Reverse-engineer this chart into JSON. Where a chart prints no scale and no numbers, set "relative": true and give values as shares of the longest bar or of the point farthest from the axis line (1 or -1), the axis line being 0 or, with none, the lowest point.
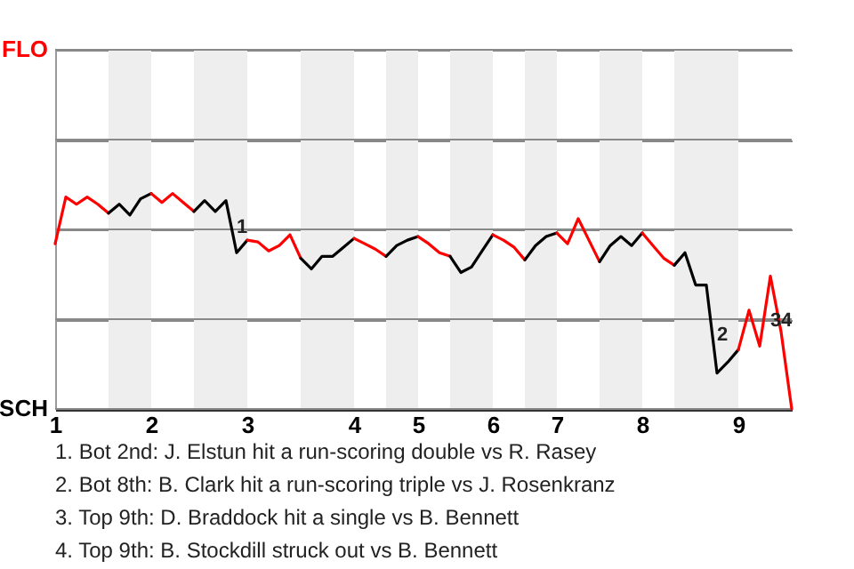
{
  "chart_data": {
    "type": "line",
    "relative": true,
    "grid": "y",
    "marker": "none",
    "line_style": "solid",
    "categories": [
      "1",
      null,
      null,
      null,
      null,
      null,
      null,
      null,
      null,
      "2",
      null,
      null,
      null,
      null,
      null,
      null,
      null,
      null,
      "3",
      null,
      null,
      null,
      null,
      null,
      null,
      null,
      null,
      null,
      "4",
      null,
      null,
      null,
      null,
      null,
      "5",
      null,
      null,
      null,
      null,
      null,
      null,
      "6",
      null,
      null,
      null,
      null,
      null,
      "7",
      null,
      null,
      null,
      null,
      null,
      null,
      null,
      "8",
      null,
      null,
      null,
      null,
      null,
      null,
      null,
      null,
      "9",
      null,
      null,
      null,
      null,
      null
    ],
    "series": [
      {
        "color": "#ff0000",
        "values": [
          -0.08,
          0.18,
          0.14,
          0.18,
          0.14,
          0.09,
          null,
          null,
          null,
          null,
          null,
          null,
          null,
          null,
          null,
          null,
          null,
          null,
          null,
          null,
          null,
          null,
          null,
          null,
          null,
          null,
          null,
          null,
          null,
          null,
          null,
          null,
          null,
          null,
          null,
          null,
          null,
          null,
          null,
          null,
          null,
          null,
          null,
          null,
          null,
          null,
          null,
          null,
          null,
          null,
          null,
          null,
          null,
          null,
          null,
          null,
          null,
          null,
          null,
          null,
          null,
          null,
          null,
          null,
          null,
          null,
          null,
          null,
          null,
          null
        ]
      },
      {
        "color": "#000000",
        "values": [
          null,
          null,
          null,
          null,
          null,
          0.09,
          0.14,
          0.08,
          0.17,
          0.2,
          null,
          null,
          null,
          null,
          null,
          null,
          null,
          null,
          null,
          null,
          null,
          null,
          null,
          null,
          null,
          null,
          null,
          null,
          null,
          null,
          null,
          null,
          null,
          null,
          null,
          null,
          null,
          null,
          null,
          null,
          null,
          null,
          null,
          null,
          null,
          null,
          null,
          null,
          null,
          null,
          null,
          null,
          null,
          null,
          null,
          null,
          null,
          null,
          null,
          null,
          null,
          null,
          null,
          null,
          null,
          null,
          null,
          null,
          null,
          null
        ]
      },
      {
        "color": "#ff0000",
        "values": [
          null,
          null,
          null,
          null,
          null,
          null,
          null,
          null,
          null,
          0.2,
          0.15,
          0.2,
          0.15,
          0.1,
          null,
          null,
          null,
          null,
          null,
          null,
          null,
          null,
          null,
          null,
          null,
          null,
          null,
          null,
          null,
          null,
          null,
          null,
          null,
          null,
          null,
          null,
          null,
          null,
          null,
          null,
          null,
          null,
          null,
          null,
          null,
          null,
          null,
          null,
          null,
          null,
          null,
          null,
          null,
          null,
          null,
          null,
          null,
          null,
          null,
          null,
          null,
          null,
          null,
          null,
          null,
          null,
          null,
          null,
          null,
          null
        ]
      },
      {
        "color": "#000000",
        "values": [
          null,
          null,
          null,
          null,
          null,
          null,
          null,
          null,
          null,
          null,
          null,
          null,
          null,
          0.1,
          0.16,
          0.1,
          0.16,
          -0.13,
          -0.06,
          null,
          null,
          null,
          null,
          null,
          null,
          null,
          null,
          null,
          null,
          null,
          null,
          null,
          null,
          null,
          null,
          null,
          null,
          null,
          null,
          null,
          null,
          null,
          null,
          null,
          null,
          null,
          null,
          null,
          null,
          null,
          null,
          null,
          null,
          null,
          null,
          null,
          null,
          null,
          null,
          null,
          null,
          null,
          null,
          null,
          null,
          null,
          null,
          null,
          null,
          null
        ]
      },
      {
        "color": "#ff0000",
        "values": [
          null,
          null,
          null,
          null,
          null,
          null,
          null,
          null,
          null,
          null,
          null,
          null,
          null,
          null,
          null,
          null,
          null,
          null,
          -0.06,
          -0.07,
          -0.12,
          -0.09,
          -0.03,
          -0.16,
          null,
          null,
          null,
          null,
          null,
          null,
          null,
          null,
          null,
          null,
          null,
          null,
          null,
          null,
          null,
          null,
          null,
          null,
          null,
          null,
          null,
          null,
          null,
          null,
          null,
          null,
          null,
          null,
          null,
          null,
          null,
          null,
          null,
          null,
          null,
          null,
          null,
          null,
          null,
          null,
          null,
          null,
          null,
          null,
          null,
          null
        ]
      },
      {
        "color": "#000000",
        "values": [
          null,
          null,
          null,
          null,
          null,
          null,
          null,
          null,
          null,
          null,
          null,
          null,
          null,
          null,
          null,
          null,
          null,
          null,
          null,
          null,
          null,
          null,
          null,
          -0.16,
          -0.22,
          -0.15,
          -0.15,
          -0.1,
          -0.05,
          null,
          null,
          null,
          null,
          null,
          null,
          null,
          null,
          null,
          null,
          null,
          null,
          null,
          null,
          null,
          null,
          null,
          null,
          null,
          null,
          null,
          null,
          null,
          null,
          null,
          null,
          null,
          null,
          null,
          null,
          null,
          null,
          null,
          null,
          null,
          null,
          null,
          null,
          null,
          null,
          null
        ]
      },
      {
        "color": "#ff0000",
        "values": [
          null,
          null,
          null,
          null,
          null,
          null,
          null,
          null,
          null,
          null,
          null,
          null,
          null,
          null,
          null,
          null,
          null,
          null,
          null,
          null,
          null,
          null,
          null,
          null,
          null,
          null,
          null,
          null,
          -0.05,
          -0.08,
          -0.11,
          -0.15,
          null,
          null,
          null,
          null,
          null,
          null,
          null,
          null,
          null,
          null,
          null,
          null,
          null,
          null,
          null,
          null,
          null,
          null,
          null,
          null,
          null,
          null,
          null,
          null,
          null,
          null,
          null,
          null,
          null,
          null,
          null,
          null,
          null,
          null,
          null,
          null,
          null,
          null
        ]
      },
      {
        "color": "#000000",
        "values": [
          null,
          null,
          null,
          null,
          null,
          null,
          null,
          null,
          null,
          null,
          null,
          null,
          null,
          null,
          null,
          null,
          null,
          null,
          null,
          null,
          null,
          null,
          null,
          null,
          null,
          null,
          null,
          null,
          null,
          null,
          null,
          -0.15,
          -0.09,
          -0.06,
          -0.04,
          null,
          null,
          null,
          null,
          null,
          null,
          null,
          null,
          null,
          null,
          null,
          null,
          null,
          null,
          null,
          null,
          null,
          null,
          null,
          null,
          null,
          null,
          null,
          null,
          null,
          null,
          null,
          null,
          null,
          null,
          null,
          null,
          null,
          null,
          null
        ]
      },
      {
        "color": "#ff0000",
        "values": [
          null,
          null,
          null,
          null,
          null,
          null,
          null,
          null,
          null,
          null,
          null,
          null,
          null,
          null,
          null,
          null,
          null,
          null,
          null,
          null,
          null,
          null,
          null,
          null,
          null,
          null,
          null,
          null,
          null,
          null,
          null,
          null,
          null,
          null,
          -0.04,
          -0.08,
          -0.13,
          -0.15,
          null,
          null,
          null,
          null,
          null,
          null,
          null,
          null,
          null,
          null,
          null,
          null,
          null,
          null,
          null,
          null,
          null,
          null,
          null,
          null,
          null,
          null,
          null,
          null,
          null,
          null,
          null,
          null,
          null,
          null,
          null,
          null
        ]
      },
      {
        "color": "#000000",
        "values": [
          null,
          null,
          null,
          null,
          null,
          null,
          null,
          null,
          null,
          null,
          null,
          null,
          null,
          null,
          null,
          null,
          null,
          null,
          null,
          null,
          null,
          null,
          null,
          null,
          null,
          null,
          null,
          null,
          null,
          null,
          null,
          null,
          null,
          null,
          null,
          null,
          null,
          -0.15,
          -0.24,
          -0.21,
          -0.12,
          -0.03,
          null,
          null,
          null,
          null,
          null,
          null,
          null,
          null,
          null,
          null,
          null,
          null,
          null,
          null,
          null,
          null,
          null,
          null,
          null,
          null,
          null,
          null,
          null,
          null,
          null,
          null,
          null,
          null
        ]
      },
      {
        "color": "#ff0000",
        "values": [
          null,
          null,
          null,
          null,
          null,
          null,
          null,
          null,
          null,
          null,
          null,
          null,
          null,
          null,
          null,
          null,
          null,
          null,
          null,
          null,
          null,
          null,
          null,
          null,
          null,
          null,
          null,
          null,
          null,
          null,
          null,
          null,
          null,
          null,
          null,
          null,
          null,
          null,
          null,
          null,
          null,
          -0.03,
          -0.06,
          -0.1,
          -0.17,
          null,
          null,
          null,
          null,
          null,
          null,
          null,
          null,
          null,
          null,
          null,
          null,
          null,
          null,
          null,
          null,
          null,
          null,
          null,
          null,
          null,
          null,
          null,
          null,
          null
        ]
      },
      {
        "color": "#000000",
        "values": [
          null,
          null,
          null,
          null,
          null,
          null,
          null,
          null,
          null,
          null,
          null,
          null,
          null,
          null,
          null,
          null,
          null,
          null,
          null,
          null,
          null,
          null,
          null,
          null,
          null,
          null,
          null,
          null,
          null,
          null,
          null,
          null,
          null,
          null,
          null,
          null,
          null,
          null,
          null,
          null,
          null,
          null,
          null,
          null,
          -0.17,
          -0.09,
          -0.04,
          -0.02,
          null,
          null,
          null,
          null,
          null,
          null,
          null,
          null,
          null,
          null,
          null,
          null,
          null,
          null,
          null,
          null,
          null,
          null,
          null,
          null,
          null,
          null
        ]
      },
      {
        "color": "#ff0000",
        "values": [
          null,
          null,
          null,
          null,
          null,
          null,
          null,
          null,
          null,
          null,
          null,
          null,
          null,
          null,
          null,
          null,
          null,
          null,
          null,
          null,
          null,
          null,
          null,
          null,
          null,
          null,
          null,
          null,
          null,
          null,
          null,
          null,
          null,
          null,
          null,
          null,
          null,
          null,
          null,
          null,
          null,
          null,
          null,
          null,
          null,
          null,
          null,
          -0.02,
          -0.08,
          0.06,
          -0.06,
          -0.18,
          null,
          null,
          null,
          null,
          null,
          null,
          null,
          null,
          null,
          null,
          null,
          null,
          null,
          null,
          null,
          null,
          null,
          null
        ]
      },
      {
        "color": "#000000",
        "values": [
          null,
          null,
          null,
          null,
          null,
          null,
          null,
          null,
          null,
          null,
          null,
          null,
          null,
          null,
          null,
          null,
          null,
          null,
          null,
          null,
          null,
          null,
          null,
          null,
          null,
          null,
          null,
          null,
          null,
          null,
          null,
          null,
          null,
          null,
          null,
          null,
          null,
          null,
          null,
          null,
          null,
          null,
          null,
          null,
          null,
          null,
          null,
          null,
          null,
          null,
          null,
          -0.18,
          -0.09,
          -0.04,
          -0.09,
          -0.02,
          null,
          null,
          null,
          null,
          null,
          null,
          null,
          null,
          null,
          null,
          null,
          null,
          null,
          null
        ]
      },
      {
        "color": "#ff0000",
        "values": [
          null,
          null,
          null,
          null,
          null,
          null,
          null,
          null,
          null,
          null,
          null,
          null,
          null,
          null,
          null,
          null,
          null,
          null,
          null,
          null,
          null,
          null,
          null,
          null,
          null,
          null,
          null,
          null,
          null,
          null,
          null,
          null,
          null,
          null,
          null,
          null,
          null,
          null,
          null,
          null,
          null,
          null,
          null,
          null,
          null,
          null,
          null,
          null,
          null,
          null,
          null,
          null,
          null,
          null,
          null,
          -0.02,
          -0.09,
          -0.16,
          -0.2,
          null,
          null,
          null,
          null,
          null,
          null,
          null,
          null,
          null,
          null,
          null
        ]
      },
      {
        "color": "#000000",
        "values": [
          null,
          null,
          null,
          null,
          null,
          null,
          null,
          null,
          null,
          null,
          null,
          null,
          null,
          null,
          null,
          null,
          null,
          null,
          null,
          null,
          null,
          null,
          null,
          null,
          null,
          null,
          null,
          null,
          null,
          null,
          null,
          null,
          null,
          null,
          null,
          null,
          null,
          null,
          null,
          null,
          null,
          null,
          null,
          null,
          null,
          null,
          null,
          null,
          null,
          null,
          null,
          null,
          null,
          null,
          null,
          null,
          null,
          null,
          -0.2,
          -0.13,
          -0.31,
          -0.31,
          -0.8,
          -0.74,
          -0.67,
          null,
          null,
          null,
          null,
          null
        ]
      },
      {
        "color": "#ff0000",
        "values": [
          null,
          null,
          null,
          null,
          null,
          null,
          null,
          null,
          null,
          null,
          null,
          null,
          null,
          null,
          null,
          null,
          null,
          null,
          null,
          null,
          null,
          null,
          null,
          null,
          null,
          null,
          null,
          null,
          null,
          null,
          null,
          null,
          null,
          null,
          null,
          null,
          null,
          null,
          null,
          null,
          null,
          null,
          null,
          null,
          null,
          null,
          null,
          null,
          null,
          null,
          null,
          null,
          null,
          null,
          null,
          null,
          null,
          null,
          null,
          null,
          null,
          null,
          null,
          null,
          -0.67,
          -0.45,
          -0.65,
          -0.26,
          -0.57,
          -1
        ]
      }
    ],
    "annotations": [
      "FLO",
      "SCH",
      {
        "text": "1",
        "y": -0.01
      },
      {
        "text": "2",
        "y": -0.61
      },
      {
        "text": "3",
        "y": -0.53
      },
      {
        "text": "4",
        "y": -0.53
      },
      "1. Bot 2nd: J. Elstun hit a run-scoring double vs R. Rasey",
      "2. Bot 8th: B. Clark hit a run-scoring triple vs J. Rosenkranz",
      "3. Top 9th: D. Braddock hit a single vs B. Bennett",
      "4. Top 9th: B. Stockdill struck out vs B. Bennett"
    ]
  }
}
